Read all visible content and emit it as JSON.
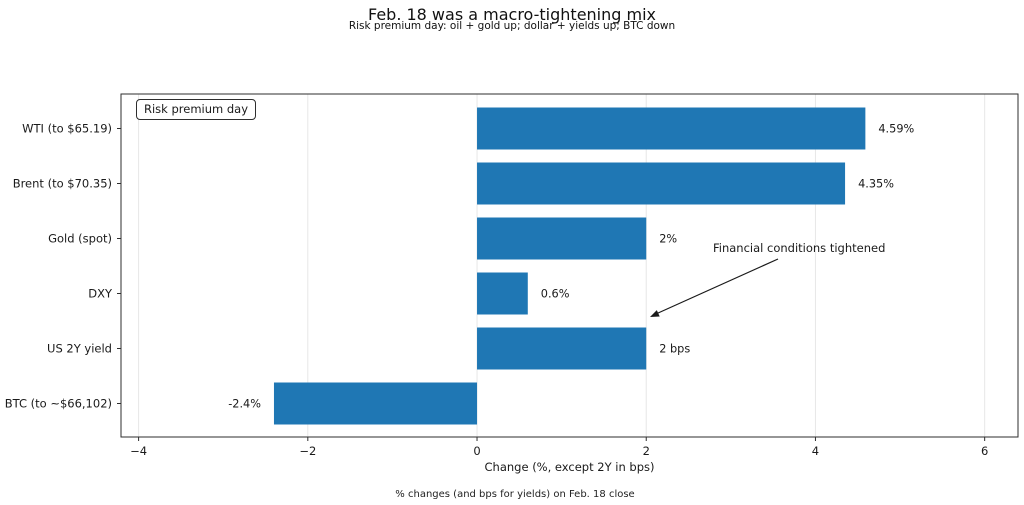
{
  "title": "Feb. 18 was a macro-tightening mix",
  "subtitle": "Risk premium day: oil + gold up; dollar + yields up; BTC down",
  "footnote": "% changes (and bps for yields) on Feb. 18 close",
  "legend_box_label": "Risk premium day",
  "annotation": {
    "text": "Financial conditions tightened"
  },
  "colors": {
    "bar": "#1f77b4",
    "grid": "#e7e7e7",
    "spine": "#2e2e2e",
    "text": "#1a1a1a"
  },
  "chart_data": {
    "type": "bar",
    "orientation": "horizontal",
    "title": "Feb. 18 was a macro-tightening mix",
    "categories": [
      "WTI (to $65.19)",
      "Brent (to $70.35)",
      "Gold (spot)",
      "DXY",
      "US 2Y yield",
      "BTC (to ~$66,102)"
    ],
    "values": [
      4.59,
      4.35,
      2,
      0.6,
      2,
      -2.4
    ],
    "value_labels": [
      "4.59%",
      "4.35%",
      "2%",
      "0.6%",
      "2 bps",
      "-2.4%"
    ],
    "xlabel": "Change (%, except 2Y in bps)",
    "xticks": [
      -4,
      -2,
      0,
      2,
      4,
      6
    ],
    "xtick_labels": [
      "−4",
      "−2",
      "0",
      "2",
      "4",
      "6"
    ],
    "xlim": [
      -4.208,
      6.394
    ],
    "grid": true,
    "legend_position": "upper left",
    "annotation_text": "Financial conditions tightened"
  }
}
